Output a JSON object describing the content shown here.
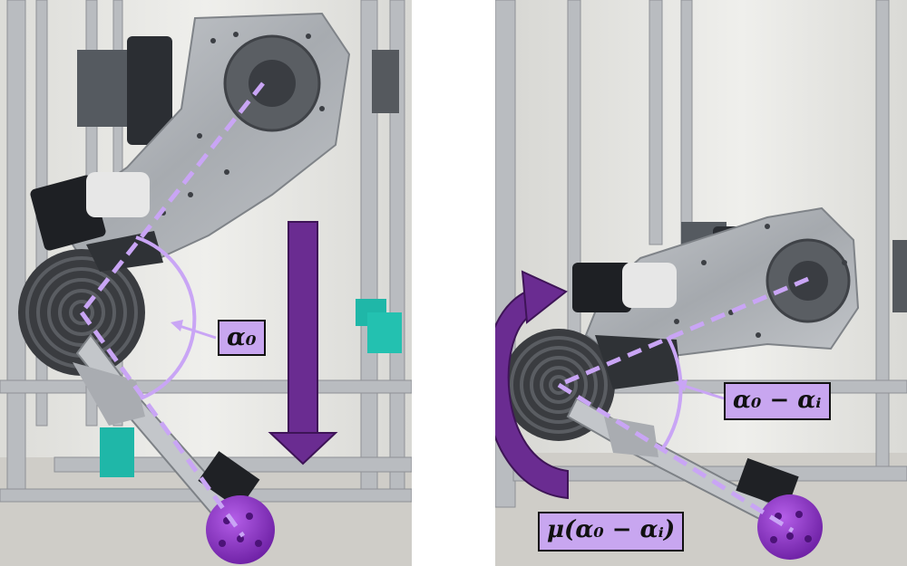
{
  "labels": {
    "left_angle": "α₀",
    "right_angle": "α₀ − αᵢ",
    "right_mu": "μ(α₀ − αᵢ)"
  },
  "colors": {
    "accent": "#c8a6f0",
    "arrow": "#6a2c91",
    "dash": "#c9a5f5",
    "wheel": "#8b2fc9",
    "frame": "#b9bcc0",
    "background": "#e9e9e6"
  },
  "icons": {
    "push_arrow": "down-arrow-icon",
    "rotation_arrow": "curved-arrow-icon"
  }
}
